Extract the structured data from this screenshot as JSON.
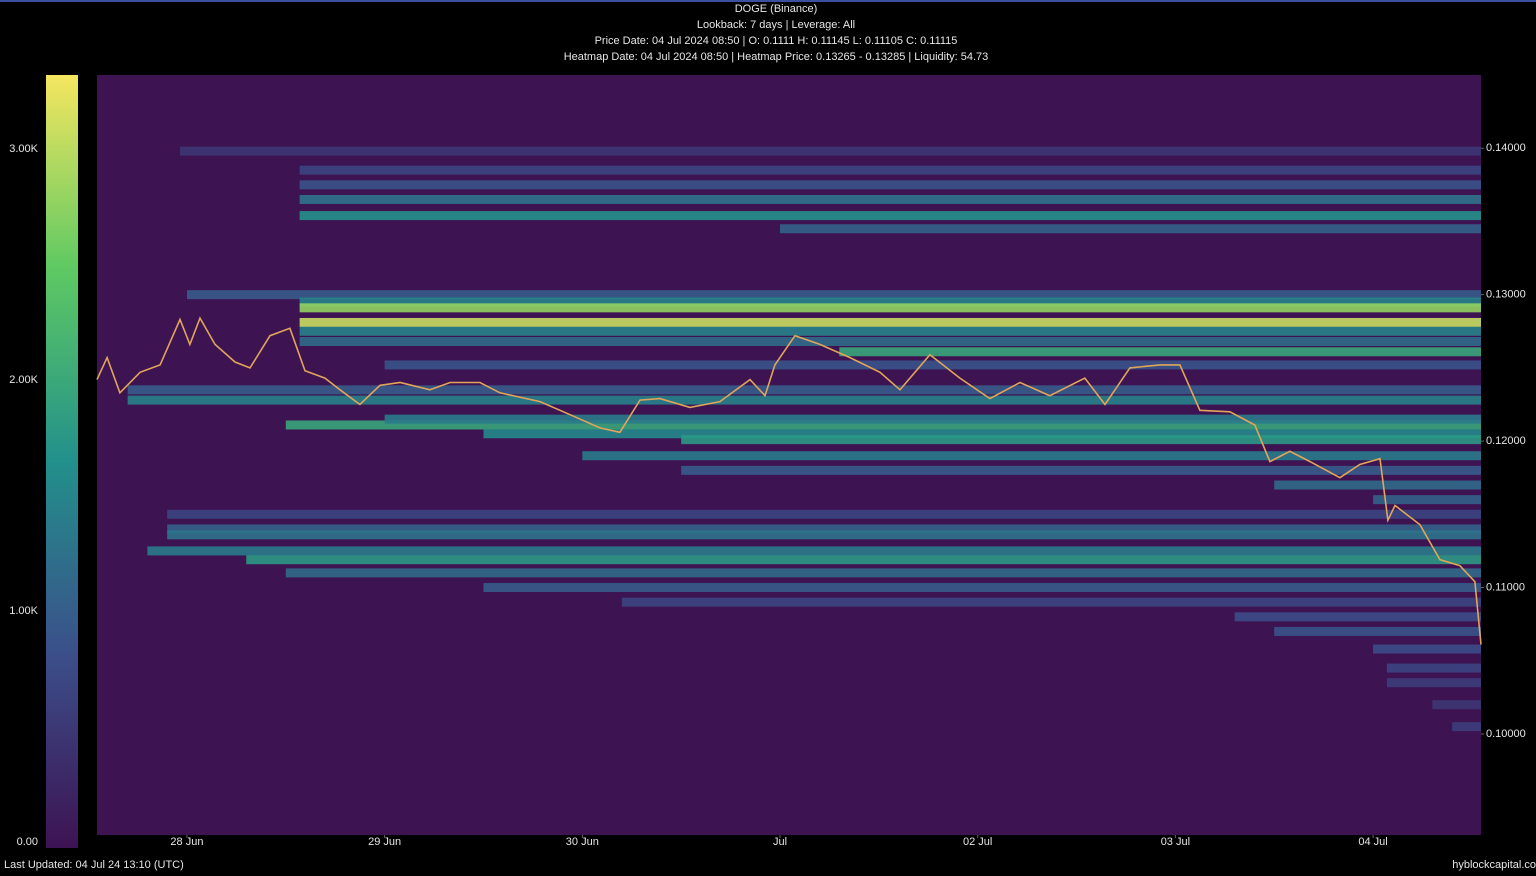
{
  "chart_data": {
    "type": "heatmap",
    "title": "DOGE (Binance)",
    "subtitles": [
      "Lookback: 7 days | Leverage: All",
      "Price Date: 04 Jul 2024 08:50 | O: 0.1111 H: 0.11145 L: 0.11105 C: 0.11115",
      "Heatmap Date: 04 Jul 2024 08:50 | Heatmap Price: 0.13265 - 0.13285 | Liquidity: 54.73"
    ],
    "footer_left": "Last Updated: 04 Jul 24 13:10 (UTC)",
    "footer_right": "hyblockcapital.co",
    "xlim": [
      27.545,
      34.546
    ],
    "xticks": [
      {
        "value": 28,
        "label": "28 Jun"
      },
      {
        "value": 29,
        "label": "29 Jun"
      },
      {
        "value": 30,
        "label": "30 Jun"
      },
      {
        "value": 31,
        "label": "Jul"
      },
      {
        "value": 32,
        "label": "02 Jul"
      },
      {
        "value": 33,
        "label": "03 Jul"
      },
      {
        "value": 34,
        "label": "04 Jul"
      }
    ],
    "ylim": [
      0.0931,
      0.145
    ],
    "yticks": [
      {
        "value": 0.1,
        "label": "0.10000"
      },
      {
        "value": 0.11,
        "label": "0.11000"
      },
      {
        "value": 0.12,
        "label": "0.12000"
      },
      {
        "value": 0.13,
        "label": "0.13000"
      },
      {
        "value": 0.14,
        "label": "0.14000"
      }
    ],
    "colorbar": {
      "clim": [
        0,
        3346
      ],
      "ticks": [
        {
          "value": 0,
          "label": "0.00"
        },
        {
          "value": 1000,
          "label": "1.00K"
        },
        {
          "value": 2000,
          "label": "2.00K"
        },
        {
          "value": 3000,
          "label": "3.00K"
        }
      ],
      "colorscale": [
        "#3d1352",
        "#3b4f8a",
        "#22908b",
        "#5ec962",
        "#f5e660"
      ]
    },
    "heatmap": {
      "y": [
        0.1398,
        0.1385,
        0.1375,
        0.1365,
        0.1354,
        0.1345,
        0.13,
        0.1295,
        0.1291,
        0.1281,
        0.1275,
        0.1268,
        0.1261,
        0.1252,
        0.1235,
        0.1228,
        0.1211,
        0.1215,
        0.1205,
        0.1201,
        0.119,
        0.118,
        0.117,
        0.116,
        0.115,
        0.114,
        0.1136,
        0.1125,
        0.1119,
        0.111,
        0.11,
        0.109,
        0.108,
        0.107,
        0.1058,
        0.1045,
        0.1035,
        0.102,
        0.1005
      ],
      "x_start": [
        27.965,
        28.57,
        28.57,
        28.57,
        28.57,
        31.0,
        28.0,
        28.57,
        28.57,
        28.57,
        28.57,
        28.57,
        31.3,
        29.0,
        27.7,
        27.7,
        28.5,
        29.0,
        29.5,
        30.5,
        30.0,
        30.5,
        33.5,
        34.0,
        27.9,
        27.9,
        27.9,
        27.8,
        28.3,
        28.5,
        29.5,
        30.2,
        33.3,
        33.5,
        34.0,
        34.07,
        34.07,
        34.3,
        34.4
      ],
      "values": [
        500,
        700,
        900,
        1300,
        1700,
        1100,
        1000,
        1500,
        2800,
        3100,
        1500,
        1200,
        2000,
        900,
        1000,
        1500,
        2000,
        1400,
        1600,
        1800,
        1400,
        1000,
        1200,
        1100,
        700,
        1100,
        1300,
        1400,
        1800,
        1200,
        1000,
        700,
        800,
        900,
        800,
        700,
        600,
        500,
        600
      ]
    },
    "series": [
      {
        "color": "#e0a55a",
        "x": [
          27.545,
          27.596,
          27.661,
          27.763,
          27.864,
          27.965,
          28.015,
          28.066,
          28.142,
          28.243,
          28.319,
          28.42,
          28.521,
          28.597,
          28.698,
          28.774,
          28.875,
          28.976,
          29.078,
          29.229,
          29.331,
          29.482,
          29.583,
          29.786,
          29.938,
          30.089,
          30.19,
          30.292,
          30.393,
          30.544,
          30.696,
          30.848,
          30.924,
          30.974,
          31.076,
          31.202,
          31.354,
          31.506,
          31.607,
          31.758,
          31.91,
          32.062,
          32.214,
          32.365,
          32.542,
          32.644,
          32.77,
          32.922,
          33.023,
          33.124,
          33.276,
          33.402,
          33.478,
          33.579,
          33.681,
          33.832,
          33.933,
          34.035,
          34.075,
          34.111,
          34.237,
          34.338,
          34.439,
          34.515,
          34.546
        ],
        "values": [
          0.1242,
          0.1257,
          0.1233,
          0.1247,
          0.1252,
          0.1283,
          0.1266,
          0.1284,
          0.1266,
          0.1254,
          0.125,
          0.1272,
          0.1277,
          0.1248,
          0.1243,
          0.1235,
          0.1225,
          0.1238,
          0.124,
          0.1235,
          0.124,
          0.124,
          0.1233,
          0.1227,
          0.1218,
          0.1209,
          0.1206,
          0.1228,
          0.1229,
          0.1223,
          0.1227,
          0.1242,
          0.1231,
          0.1252,
          0.1272,
          0.1266,
          0.1257,
          0.1247,
          0.1235,
          0.1259,
          0.1243,
          0.1229,
          0.124,
          0.1231,
          0.1243,
          0.1225,
          0.125,
          0.1252,
          0.1252,
          0.1221,
          0.122,
          0.1211,
          0.1186,
          0.1193,
          0.1186,
          0.1175,
          0.1184,
          0.1188,
          0.1146,
          0.1156,
          0.1143,
          0.1119,
          0.1115,
          0.1104,
          0.1061
        ]
      }
    ]
  }
}
